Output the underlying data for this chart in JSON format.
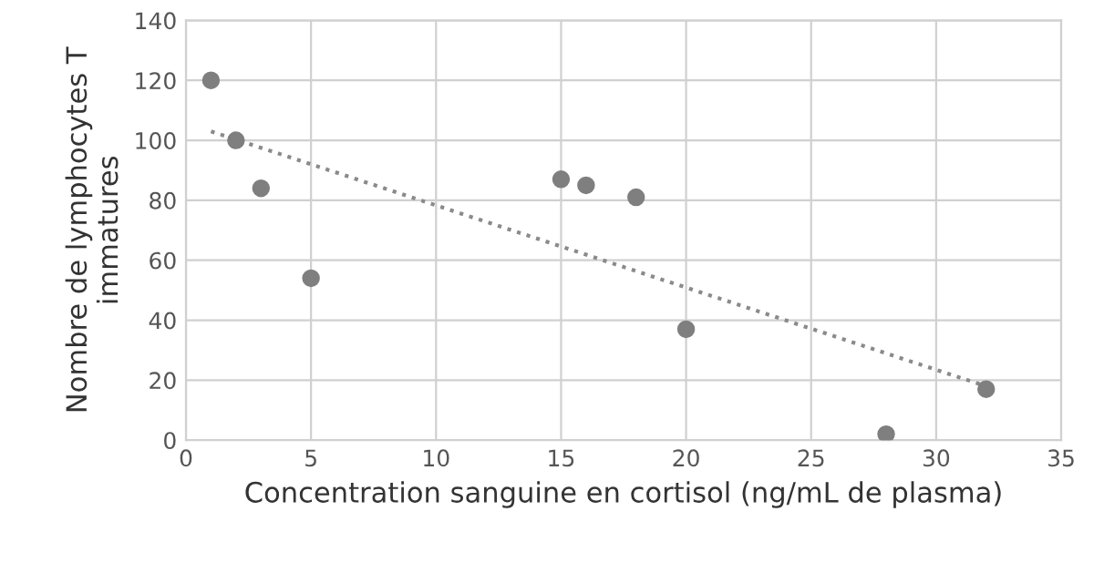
{
  "chart_data": {
    "type": "scatter",
    "xlabel": "Concentration sanguine en cortisol (ng/mL de plasma)",
    "ylabel": "Nombre de lymphocytes T immatures",
    "series": [
      {
        "color": "#7f7f7f",
        "marker": "circle",
        "x": [
          1,
          2,
          3,
          5,
          15,
          16,
          18,
          20,
          28,
          32
        ],
        "values": [
          120,
          100,
          84,
          54,
          87,
          85,
          81,
          37,
          2,
          17
        ]
      },
      {
        "type": "line",
        "color": "#8a8a8a",
        "line_style": "dotted",
        "marker": "none",
        "x": [
          1,
          32
        ],
        "values": [
          103,
          18
        ]
      }
    ],
    "xlim": [
      0,
      35
    ],
    "xticks": [
      0,
      5,
      10,
      15,
      20,
      25,
      30,
      35
    ],
    "ylim": [
      0,
      140
    ],
    "yticks": [
      0,
      20,
      40,
      60,
      80,
      100,
      120,
      140
    ],
    "grid": true,
    "legend": false
  }
}
